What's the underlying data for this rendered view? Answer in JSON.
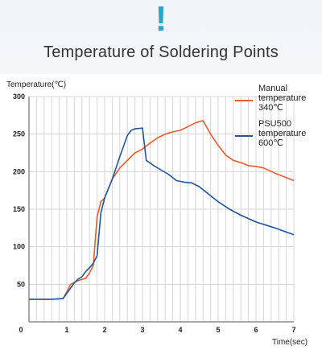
{
  "header": {
    "icon": "exclamation-icon",
    "mark": "!"
  },
  "chart_data": {
    "type": "line",
    "title": "Temperature of Soldering Points",
    "ylabel": "Temperature(℃)",
    "xlabel": "Time(sec)",
    "xlim": [
      0,
      7
    ],
    "ylim": [
      0,
      300
    ],
    "xticks": [
      0,
      1,
      2,
      3,
      4,
      5,
      6,
      7
    ],
    "yticks": [
      50,
      100,
      150,
      200,
      250,
      300
    ],
    "grid": true,
    "legend_position": "top-right",
    "series": [
      {
        "name": "Manual temperature 340℃",
        "legend_lines": [
          "Manual",
          "temperature",
          "340℃"
        ],
        "color": "#f05a28",
        "x": [
          0,
          0.3,
          0.6,
          0.9,
          1.0,
          1.1,
          1.3,
          1.5,
          1.6,
          1.7,
          1.8,
          1.9,
          2.0,
          2.2,
          2.4,
          2.6,
          2.8,
          3.0,
          3.2,
          3.4,
          3.6,
          3.8,
          4.0,
          4.2,
          4.4,
          4.6,
          4.8,
          5.0,
          5.2,
          5.4,
          5.6,
          5.8,
          6.0,
          6.2,
          6.5,
          6.8,
          7.0
        ],
        "y": [
          30,
          30,
          30,
          31,
          40,
          50,
          55,
          58,
          65,
          75,
          140,
          160,
          165,
          190,
          205,
          215,
          225,
          230,
          238,
          245,
          250,
          253,
          255,
          260,
          265,
          268,
          250,
          235,
          222,
          215,
          212,
          208,
          207,
          205,
          198,
          192,
          188
        ]
      },
      {
        "name": "PSU500 temperature 600℃",
        "legend_lines": [
          "PSU500",
          "temperature",
          "600℃"
        ],
        "color": "#1e56a0",
        "x": [
          0,
          0.3,
          0.6,
          0.9,
          1.0,
          1.1,
          1.2,
          1.3,
          1.4,
          1.5,
          1.6,
          1.7,
          1.8,
          1.9,
          2.0,
          2.2,
          2.4,
          2.6,
          2.7,
          2.8,
          3.0,
          3.1,
          3.3,
          3.5,
          3.7,
          3.9,
          4.1,
          4.3,
          4.5,
          4.7,
          5.0,
          5.3,
          5.6,
          6.0,
          6.5,
          7.0
        ],
        "y": [
          30,
          30,
          30,
          31,
          38,
          45,
          52,
          57,
          60,
          67,
          72,
          78,
          88,
          145,
          165,
          190,
          220,
          248,
          255,
          257,
          258,
          215,
          208,
          202,
          196,
          188,
          186,
          185,
          180,
          172,
          160,
          150,
          142,
          133,
          125,
          116
        ]
      }
    ]
  }
}
